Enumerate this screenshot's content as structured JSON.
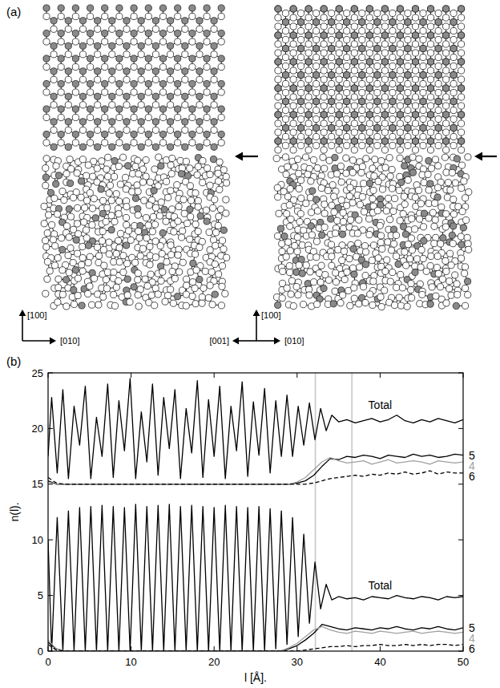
{
  "panel_a": {
    "label": "(a)",
    "left_axes": {
      "up": "[100]",
      "right": "[010]"
    },
    "right_axes": {
      "up": "[100]",
      "left": "[001]",
      "right": "[010]"
    }
  },
  "chart_data": {
    "type": "line",
    "panel_label": "(b)",
    "x_label": "l [Å].",
    "y_label": "n(l).",
    "xlim": [
      0,
      50
    ],
    "ylim": [
      0,
      25
    ],
    "xticks": [
      0,
      10,
      20,
      30,
      40,
      50
    ],
    "yticks": [
      0,
      5,
      10,
      15,
      20,
      25
    ],
    "grid": false,
    "vertical_lines": [
      32.2,
      36.6
    ],
    "x": [
      0,
      1,
      2,
      3,
      4,
      5,
      6,
      7,
      8,
      9,
      10,
      11,
      12,
      13,
      14,
      15,
      16,
      17,
      18,
      19,
      20,
      21,
      22,
      23,
      24,
      25,
      26,
      27,
      28,
      29,
      30,
      31,
      32,
      33,
      34,
      35,
      36,
      37,
      38,
      39,
      40,
      41,
      42,
      43,
      44,
      45,
      46,
      47,
      48,
      49,
      50
    ],
    "series": [
      {
        "name": "Total",
        "color": "#000000",
        "line_style": "solid",
        "x": [
          0,
          0.43,
          1.1,
          1.78,
          2.45,
          3.13,
          3.8,
          4.48,
          5.15,
          5.83,
          6.5,
          7.18,
          7.85,
          8.53,
          9.2,
          9.88,
          10.55,
          11.23,
          11.9,
          12.58,
          13.25,
          13.93,
          14.6,
          15.28,
          15.95,
          16.63,
          17.3,
          17.98,
          18.65,
          19.33,
          20.0,
          20.68,
          21.35,
          22.03,
          22.7,
          23.38,
          24.05,
          24.73,
          25.4,
          26.08,
          26.75,
          27.43,
          28.1,
          28.78,
          29.45,
          30.13,
          30.8,
          31.48,
          32.15,
          32.83,
          33.5,
          34.18,
          35,
          36,
          37,
          38,
          39,
          40,
          41,
          42,
          43,
          44,
          45,
          46,
          47,
          48,
          49,
          50
        ],
        "values": [
          17.5,
          22.8,
          16.0,
          23.5,
          15.5,
          22.0,
          18.5,
          23.8,
          15.5,
          21.0,
          17.5,
          24.0,
          15.6,
          22.5,
          18.0,
          24.5,
          15.5,
          21.5,
          17.0,
          24.0,
          15.8,
          22.8,
          18.2,
          23.5,
          15.5,
          21.8,
          17.8,
          24.3,
          15.6,
          22.6,
          17.5,
          23.8,
          15.5,
          22.0,
          18.0,
          24.2,
          15.7,
          22.4,
          17.6,
          23.6,
          16.0,
          22.5,
          17.5,
          23.0,
          17.5,
          22.0,
          18.5,
          22.3,
          19.0,
          21.8,
          19.8,
          21.2,
          20.6,
          20.8,
          20.5,
          20.7,
          20.9,
          20.6,
          20.8,
          21.2,
          20.7,
          20.5,
          20.8,
          20.6,
          20.9,
          20.7,
          20.5,
          20.8
        ]
      },
      {
        "name": "5",
        "color": "#000000",
        "line_style": "solid",
        "values": [
          15.3,
          15,
          15,
          15,
          15,
          15,
          15,
          15,
          15,
          15,
          15,
          15,
          15,
          15,
          15,
          15,
          15,
          15,
          15,
          15,
          15,
          15,
          15,
          15,
          15,
          15,
          15,
          15,
          15,
          15,
          15.1,
          15.3,
          15.8,
          16.6,
          17.3,
          17.2,
          17.5,
          17.4,
          17.6,
          17.5,
          17.3,
          17.6,
          17.5,
          17.4,
          17.7,
          17.5,
          17.6,
          17.4,
          17.5,
          17.7,
          17.6
        ]
      },
      {
        "name": "4",
        "color": "#a0a0a0",
        "line_style": "solid",
        "values": [
          15.2,
          15,
          15,
          15,
          15,
          15,
          15,
          15,
          15,
          15,
          15,
          15,
          15,
          15,
          15,
          15,
          15,
          15,
          15,
          15,
          15,
          15,
          15,
          15,
          15,
          15,
          15,
          15,
          15,
          15,
          15.2,
          15.6,
          16.3,
          17.0,
          17.4,
          17.1,
          16.9,
          17.0,
          17.1,
          16.8,
          17.0,
          17.2,
          16.9,
          17.0,
          17.1,
          17.0,
          16.8,
          17.1,
          17.0,
          16.9,
          17.0
        ]
      },
      {
        "name": "6",
        "color": "#000000",
        "line_style": "dashed",
        "values": [
          15.6,
          15.1,
          15,
          15,
          15,
          15,
          15,
          15,
          15,
          15,
          15,
          15,
          15,
          15,
          15,
          15,
          15,
          15,
          15,
          15,
          15,
          15,
          15,
          15,
          15,
          15,
          15,
          15,
          15,
          15,
          15,
          15,
          15.1,
          15.3,
          15.5,
          15.6,
          15.7,
          15.8,
          15.7,
          15.9,
          15.8,
          16.0,
          15.9,
          16.1,
          15.9,
          16.0,
          16.2,
          15.9,
          16.1,
          16.0,
          16.0
        ]
      },
      {
        "name": "Total",
        "color": "#000000",
        "line_style": "solid",
        "x": [
          0,
          0.43,
          1.1,
          1.78,
          2.45,
          3.13,
          3.8,
          4.48,
          5.15,
          5.83,
          6.5,
          7.18,
          7.85,
          8.53,
          9.2,
          9.88,
          10.55,
          11.23,
          11.9,
          12.58,
          13.25,
          13.93,
          14.6,
          15.28,
          15.95,
          16.63,
          17.3,
          17.98,
          18.65,
          19.33,
          20.0,
          20.68,
          21.35,
          22.03,
          22.7,
          23.38,
          24.05,
          24.73,
          25.4,
          26.08,
          26.75,
          27.43,
          28.1,
          28.78,
          29.45,
          30.13,
          30.8,
          31.48,
          32.15,
          32.83,
          33.5,
          34.18,
          35,
          36,
          37,
          38,
          39,
          40,
          41,
          42,
          43,
          44,
          45,
          46,
          47,
          48,
          49,
          50
        ],
        "values": [
          10,
          0,
          12.0,
          0,
          12.6,
          0,
          12.9,
          0,
          13.0,
          0,
          13.1,
          0,
          13.0,
          0,
          12.9,
          0,
          13.2,
          0,
          13.0,
          0,
          13.1,
          0,
          13.2,
          0,
          13.0,
          0,
          13.1,
          0,
          13.0,
          0,
          12.9,
          0,
          13.1,
          0,
          13.0,
          0,
          12.9,
          0,
          13.0,
          0,
          12.8,
          0.2,
          12.6,
          0.6,
          12.0,
          1.3,
          10.5,
          2.5,
          8.0,
          3.8,
          6.0,
          4.6,
          4.9,
          4.7,
          4.8,
          4.6,
          4.9,
          4.8,
          4.7,
          5.0,
          4.8,
          4.7,
          4.9,
          4.8,
          4.6,
          4.9,
          4.8,
          4.9
        ]
      },
      {
        "name": "5",
        "color": "#000000",
        "line_style": "solid",
        "values": [
          0.8,
          0.2,
          0,
          0,
          0,
          0,
          0,
          0,
          0,
          0,
          0,
          0,
          0,
          0,
          0,
          0,
          0,
          0,
          0,
          0,
          0,
          0,
          0,
          0,
          0,
          0,
          0,
          0,
          0,
          0.2,
          0.5,
          1.0,
          1.6,
          2.4,
          2.2,
          2.0,
          1.9,
          2.1,
          2.0,
          1.9,
          2.1,
          2.0,
          2.2,
          2.0,
          1.9,
          2.1,
          2.0,
          2.2,
          2.0,
          1.9,
          2.1
        ]
      },
      {
        "name": "4",
        "color": "#a0a0a0",
        "line_style": "solid",
        "values": [
          1.0,
          0.2,
          0,
          0,
          0,
          0,
          0,
          0,
          0,
          0,
          0,
          0,
          0,
          0,
          0,
          0,
          0,
          0,
          0,
          0,
          0,
          0,
          0,
          0,
          0,
          0,
          0,
          0,
          0,
          0.3,
          0.7,
          1.3,
          1.9,
          2.2,
          1.9,
          1.7,
          1.6,
          1.8,
          1.7,
          1.6,
          1.8,
          1.7,
          1.6,
          1.7,
          1.8,
          1.6,
          1.7,
          1.8,
          1.7,
          1.6,
          1.7
        ]
      },
      {
        "name": "6",
        "color": "#000000",
        "line_style": "dashed",
        "values": [
          0.6,
          0.1,
          0,
          0,
          0,
          0,
          0,
          0,
          0,
          0,
          0,
          0,
          0,
          0,
          0,
          0,
          0,
          0,
          0,
          0,
          0,
          0,
          0,
          0,
          0,
          0,
          0,
          0,
          0,
          0,
          0,
          0.1,
          0.2,
          0.3,
          0.4,
          0.4,
          0.5,
          0.4,
          0.5,
          0.5,
          0.6,
          0.5,
          0.5,
          0.6,
          0.5,
          0.6,
          0.5,
          0.6,
          0.6,
          0.5,
          0.6
        ]
      }
    ]
  }
}
